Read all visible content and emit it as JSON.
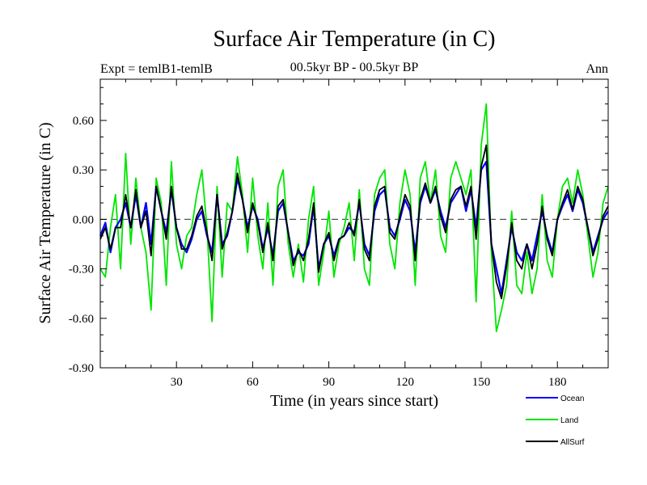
{
  "chart_data": {
    "type": "line",
    "title": "Surface Air Temperature (in C)",
    "subtitle_left": "Expt = temlB1-temlB",
    "subtitle_center": "00.5kyr BP - 00.5kyr BP",
    "subtitle_right": "Ann",
    "xlabel": "Time (in years since start)",
    "ylabel": "Surface Air Temperature (in C)",
    "xlim": [
      0,
      200
    ],
    "ylim": [
      -0.9,
      0.85
    ],
    "xticks": [
      30,
      60,
      90,
      120,
      150,
      180
    ],
    "xtick_labels": [
      "30",
      "60",
      "90",
      "120",
      "150",
      "180"
    ],
    "yticks": [
      -0.9,
      -0.6,
      -0.3,
      0.0,
      0.3,
      0.6
    ],
    "ytick_labels": [
      "-0.90",
      "-0.60",
      "-0.30",
      "0.00",
      "0.30",
      "0.60"
    ],
    "zero_line": 0,
    "x": [
      0,
      2,
      4,
      6,
      8,
      10,
      12,
      14,
      16,
      18,
      20,
      22,
      24,
      26,
      28,
      30,
      32,
      34,
      36,
      38,
      40,
      42,
      44,
      46,
      48,
      50,
      52,
      54,
      56,
      58,
      60,
      62,
      64,
      66,
      68,
      70,
      72,
      74,
      76,
      78,
      80,
      82,
      84,
      86,
      88,
      90,
      92,
      94,
      96,
      98,
      100,
      102,
      104,
      106,
      108,
      110,
      112,
      114,
      116,
      118,
      120,
      122,
      124,
      126,
      128,
      130,
      132,
      134,
      136,
      138,
      140,
      142,
      144,
      146,
      148,
      150,
      152,
      154,
      156,
      158,
      160,
      162,
      164,
      166,
      168,
      170,
      172,
      174,
      176,
      178,
      180,
      182,
      184,
      186,
      188,
      190,
      192,
      194,
      196,
      198,
      200
    ],
    "series": [
      {
        "name": "Ocean",
        "color": "#0000ff",
        "values": [
          -0.1,
          -0.02,
          -0.2,
          -0.05,
          0.0,
          0.1,
          -0.05,
          0.15,
          -0.05,
          0.1,
          -0.15,
          0.2,
          0.05,
          -0.08,
          0.18,
          -0.05,
          -0.15,
          -0.2,
          -0.12,
          0.0,
          0.05,
          -0.1,
          -0.2,
          0.15,
          -0.15,
          -0.1,
          0.05,
          0.25,
          0.12,
          -0.05,
          0.08,
          0.0,
          -0.18,
          -0.05,
          -0.22,
          0.05,
          0.1,
          -0.08,
          -0.25,
          -0.2,
          -0.22,
          -0.15,
          0.08,
          -0.3,
          -0.15,
          -0.1,
          -0.22,
          -0.12,
          -0.1,
          -0.05,
          -0.08,
          0.1,
          -0.15,
          -0.22,
          0.05,
          0.15,
          0.18,
          -0.05,
          -0.1,
          0.0,
          0.12,
          0.05,
          -0.2,
          0.1,
          0.2,
          0.1,
          0.18,
          0.05,
          -0.05,
          0.1,
          0.15,
          0.2,
          0.05,
          0.18,
          -0.05,
          0.3,
          0.35,
          -0.15,
          -0.3,
          -0.45,
          -0.25,
          -0.05,
          -0.2,
          -0.25,
          -0.15,
          -0.25,
          -0.1,
          0.05,
          -0.1,
          -0.2,
          0.0,
          0.08,
          0.15,
          0.05,
          0.18,
          0.1,
          -0.05,
          -0.2,
          -0.1,
          0.0,
          0.05
        ]
      },
      {
        "name": "Land",
        "color": "#00e600",
        "values": [
          -0.3,
          -0.35,
          -0.05,
          0.15,
          -0.3,
          0.4,
          -0.15,
          0.25,
          -0.05,
          -0.2,
          -0.55,
          0.25,
          0.1,
          -0.4,
          0.35,
          -0.15,
          -0.3,
          -0.1,
          -0.05,
          0.15,
          0.3,
          -0.05,
          -0.62,
          0.2,
          -0.35,
          0.1,
          0.05,
          0.38,
          0.15,
          -0.2,
          0.25,
          -0.1,
          -0.3,
          0.1,
          -0.4,
          0.2,
          0.3,
          -0.15,
          -0.35,
          -0.15,
          -0.38,
          0.0,
          0.2,
          -0.4,
          -0.2,
          0.05,
          -0.35,
          -0.15,
          -0.05,
          0.1,
          -0.25,
          0.18,
          -0.3,
          -0.4,
          0.15,
          0.25,
          0.3,
          -0.15,
          -0.3,
          0.1,
          0.3,
          0.15,
          -0.4,
          0.25,
          0.35,
          0.1,
          0.3,
          -0.1,
          -0.2,
          0.25,
          0.35,
          0.25,
          0.15,
          0.3,
          -0.5,
          0.45,
          0.7,
          -0.2,
          -0.68,
          -0.55,
          -0.4,
          0.05,
          -0.4,
          -0.45,
          -0.2,
          -0.45,
          -0.3,
          0.15,
          -0.25,
          -0.35,
          0.0,
          0.2,
          0.25,
          0.1,
          0.3,
          0.15,
          -0.1,
          -0.35,
          -0.2,
          0.1,
          0.2
        ]
      },
      {
        "name": "AllSurf",
        "color": "#000000",
        "values": [
          -0.12,
          -0.05,
          -0.18,
          -0.05,
          -0.05,
          0.15,
          -0.05,
          0.18,
          -0.05,
          0.05,
          -0.22,
          0.2,
          0.05,
          -0.12,
          0.2,
          -0.05,
          -0.18,
          -0.18,
          -0.1,
          0.02,
          0.08,
          -0.08,
          -0.25,
          0.15,
          -0.18,
          -0.08,
          0.05,
          0.28,
          0.12,
          -0.08,
          0.1,
          -0.02,
          -0.2,
          -0.02,
          -0.25,
          0.08,
          0.12,
          -0.08,
          -0.28,
          -0.18,
          -0.25,
          -0.12,
          0.1,
          -0.32,
          -0.15,
          -0.08,
          -0.25,
          -0.12,
          -0.1,
          -0.02,
          -0.1,
          0.12,
          -0.18,
          -0.25,
          0.08,
          0.18,
          0.2,
          -0.08,
          -0.12,
          0.02,
          0.15,
          0.08,
          -0.25,
          0.12,
          0.22,
          0.1,
          0.2,
          0.02,
          -0.08,
          0.12,
          0.18,
          0.2,
          0.08,
          0.2,
          -0.12,
          0.32,
          0.45,
          -0.15,
          -0.38,
          -0.48,
          -0.28,
          -0.02,
          -0.25,
          -0.3,
          -0.15,
          -0.3,
          -0.15,
          0.08,
          -0.12,
          -0.22,
          0.0,
          0.1,
          0.18,
          0.06,
          0.2,
          0.12,
          -0.05,
          -0.22,
          -0.12,
          0.02,
          0.08
        ]
      }
    ],
    "legend_position": "bottom-right",
    "legend": [
      "Ocean",
      "Land",
      "AllSurf"
    ]
  }
}
